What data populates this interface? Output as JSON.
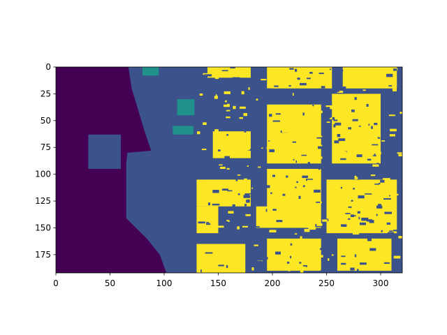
{
  "chart_data": {
    "type": "heatmap",
    "title": "",
    "xlabel": "",
    "ylabel": "",
    "xlim": [
      0,
      320
    ],
    "ylim": [
      192,
      0
    ],
    "x_ticks": [
      0,
      50,
      100,
      150,
      200,
      250,
      300
    ],
    "y_ticks": [
      0,
      25,
      50,
      75,
      100,
      125,
      150,
      175
    ],
    "colormap": "viridis",
    "colors": {
      "class_0": "#440154",
      "class_1": "#3b528b",
      "class_2": "#21918c",
      "class_3": "#fde725"
    },
    "regions": [
      {
        "class": "class_0",
        "x": [
          0,
          65
        ],
        "y": [
          0,
          192
        ]
      },
      {
        "class": "class_0",
        "x": [
          65,
          155
        ],
        "y": [
          0,
          192
        ],
        "shape": "left-boundary",
        "boundary": [
          [
            67,
            0
          ],
          [
            70,
            20
          ],
          [
            76,
            40
          ],
          [
            82,
            60
          ],
          [
            88,
            78
          ],
          [
            66,
            80
          ],
          [
            64,
            100
          ],
          [
            64,
            140
          ],
          [
            74,
            150
          ],
          [
            84,
            160
          ],
          [
            96,
            175
          ],
          [
            102,
            192
          ]
        ]
      },
      {
        "class": "class_1",
        "x": [
          30,
          60
        ],
        "y": [
          63,
          95
        ]
      },
      {
        "class": "class_2",
        "x": [
          80,
          95
        ],
        "y": [
          0,
          8
        ]
      },
      {
        "class": "class_2",
        "x": [
          112,
          128
        ],
        "y": [
          30,
          45
        ]
      },
      {
        "class": "class_2",
        "x": [
          108,
          127
        ],
        "y": [
          55,
          63
        ]
      },
      {
        "class": "class_3",
        "x": [
          140,
          180
        ],
        "y": [
          0,
          10
        ]
      },
      {
        "class": "class_3",
        "x": [
          195,
          255
        ],
        "y": [
          0,
          20
        ]
      },
      {
        "class": "class_3",
        "x": [
          265,
          315
        ],
        "y": [
          0,
          20
        ]
      },
      {
        "class": "class_3",
        "x": [
          195,
          245
        ],
        "y": [
          35,
          90
        ]
      },
      {
        "class": "class_3",
        "x": [
          255,
          300
        ],
        "y": [
          25,
          90
        ]
      },
      {
        "class": "class_3",
        "x": [
          145,
          180
        ],
        "y": [
          60,
          85
        ]
      },
      {
        "class": "class_3",
        "x": [
          130,
          180
        ],
        "y": [
          105,
          130
        ]
      },
      {
        "class": "class_3",
        "x": [
          195,
          245
        ],
        "y": [
          95,
          150
        ]
      },
      {
        "class": "class_3",
        "x": [
          250,
          315
        ],
        "y": [
          105,
          155
        ]
      },
      {
        "class": "class_3",
        "x": [
          130,
          150
        ],
        "y": [
          130,
          155
        ]
      },
      {
        "class": "class_3",
        "x": [
          185,
          205
        ],
        "y": [
          130,
          150
        ]
      },
      {
        "class": "class_3",
        "x": [
          130,
          175
        ],
        "y": [
          165,
          192
        ]
      },
      {
        "class": "class_3",
        "x": [
          195,
          245
        ],
        "y": [
          160,
          190
        ]
      },
      {
        "class": "class_3",
        "x": [
          260,
          310
        ],
        "y": [
          160,
          190
        ]
      }
    ]
  }
}
